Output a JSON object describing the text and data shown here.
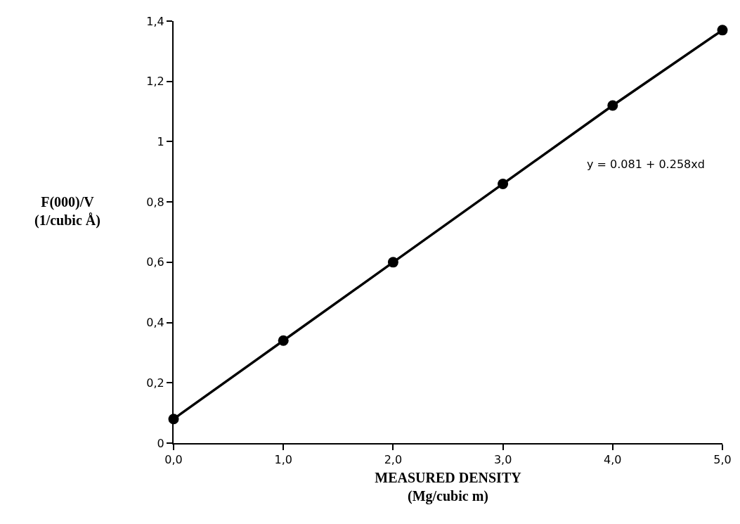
{
  "chart_data": {
    "type": "line",
    "xlabel": "MEASURED DENSITY\n(Mg/cubic m)",
    "ylabel": "F(000)/V\n(1/cubic Å)",
    "x": [
      0,
      1,
      2,
      3,
      4,
      5
    ],
    "series": [
      {
        "color": "#000000",
        "values": [
          0.08,
          0.34,
          0.6,
          0.86,
          1.12,
          1.37
        ]
      }
    ],
    "xlim": [
      0,
      5
    ],
    "xticks": [
      {
        "value": 0,
        "label": "0,0"
      },
      {
        "value": 1,
        "label": "1,0"
      },
      {
        "value": 2,
        "label": "2,0"
      },
      {
        "value": 3,
        "label": "3,0"
      },
      {
        "value": 4,
        "label": "4,0"
      },
      {
        "value": 5,
        "label": "5,0"
      }
    ],
    "ylim": [
      0,
      1.4
    ],
    "yticks": [
      0,
      {
        "value": 0.2,
        "label": "0,2"
      },
      {
        "value": 0.4,
        "label": "0,4"
      },
      {
        "value": 0.6,
        "label": "0,6"
      },
      {
        "value": 0.8,
        "label": "0,8"
      },
      1,
      {
        "value": 1.2,
        "label": "1,2"
      },
      {
        "value": 1.4,
        "label": "1,4"
      }
    ],
    "annotations": [
      "y = 0.081 + 0.258xd"
    ],
    "marker": "circle",
    "line_style": "solid"
  }
}
